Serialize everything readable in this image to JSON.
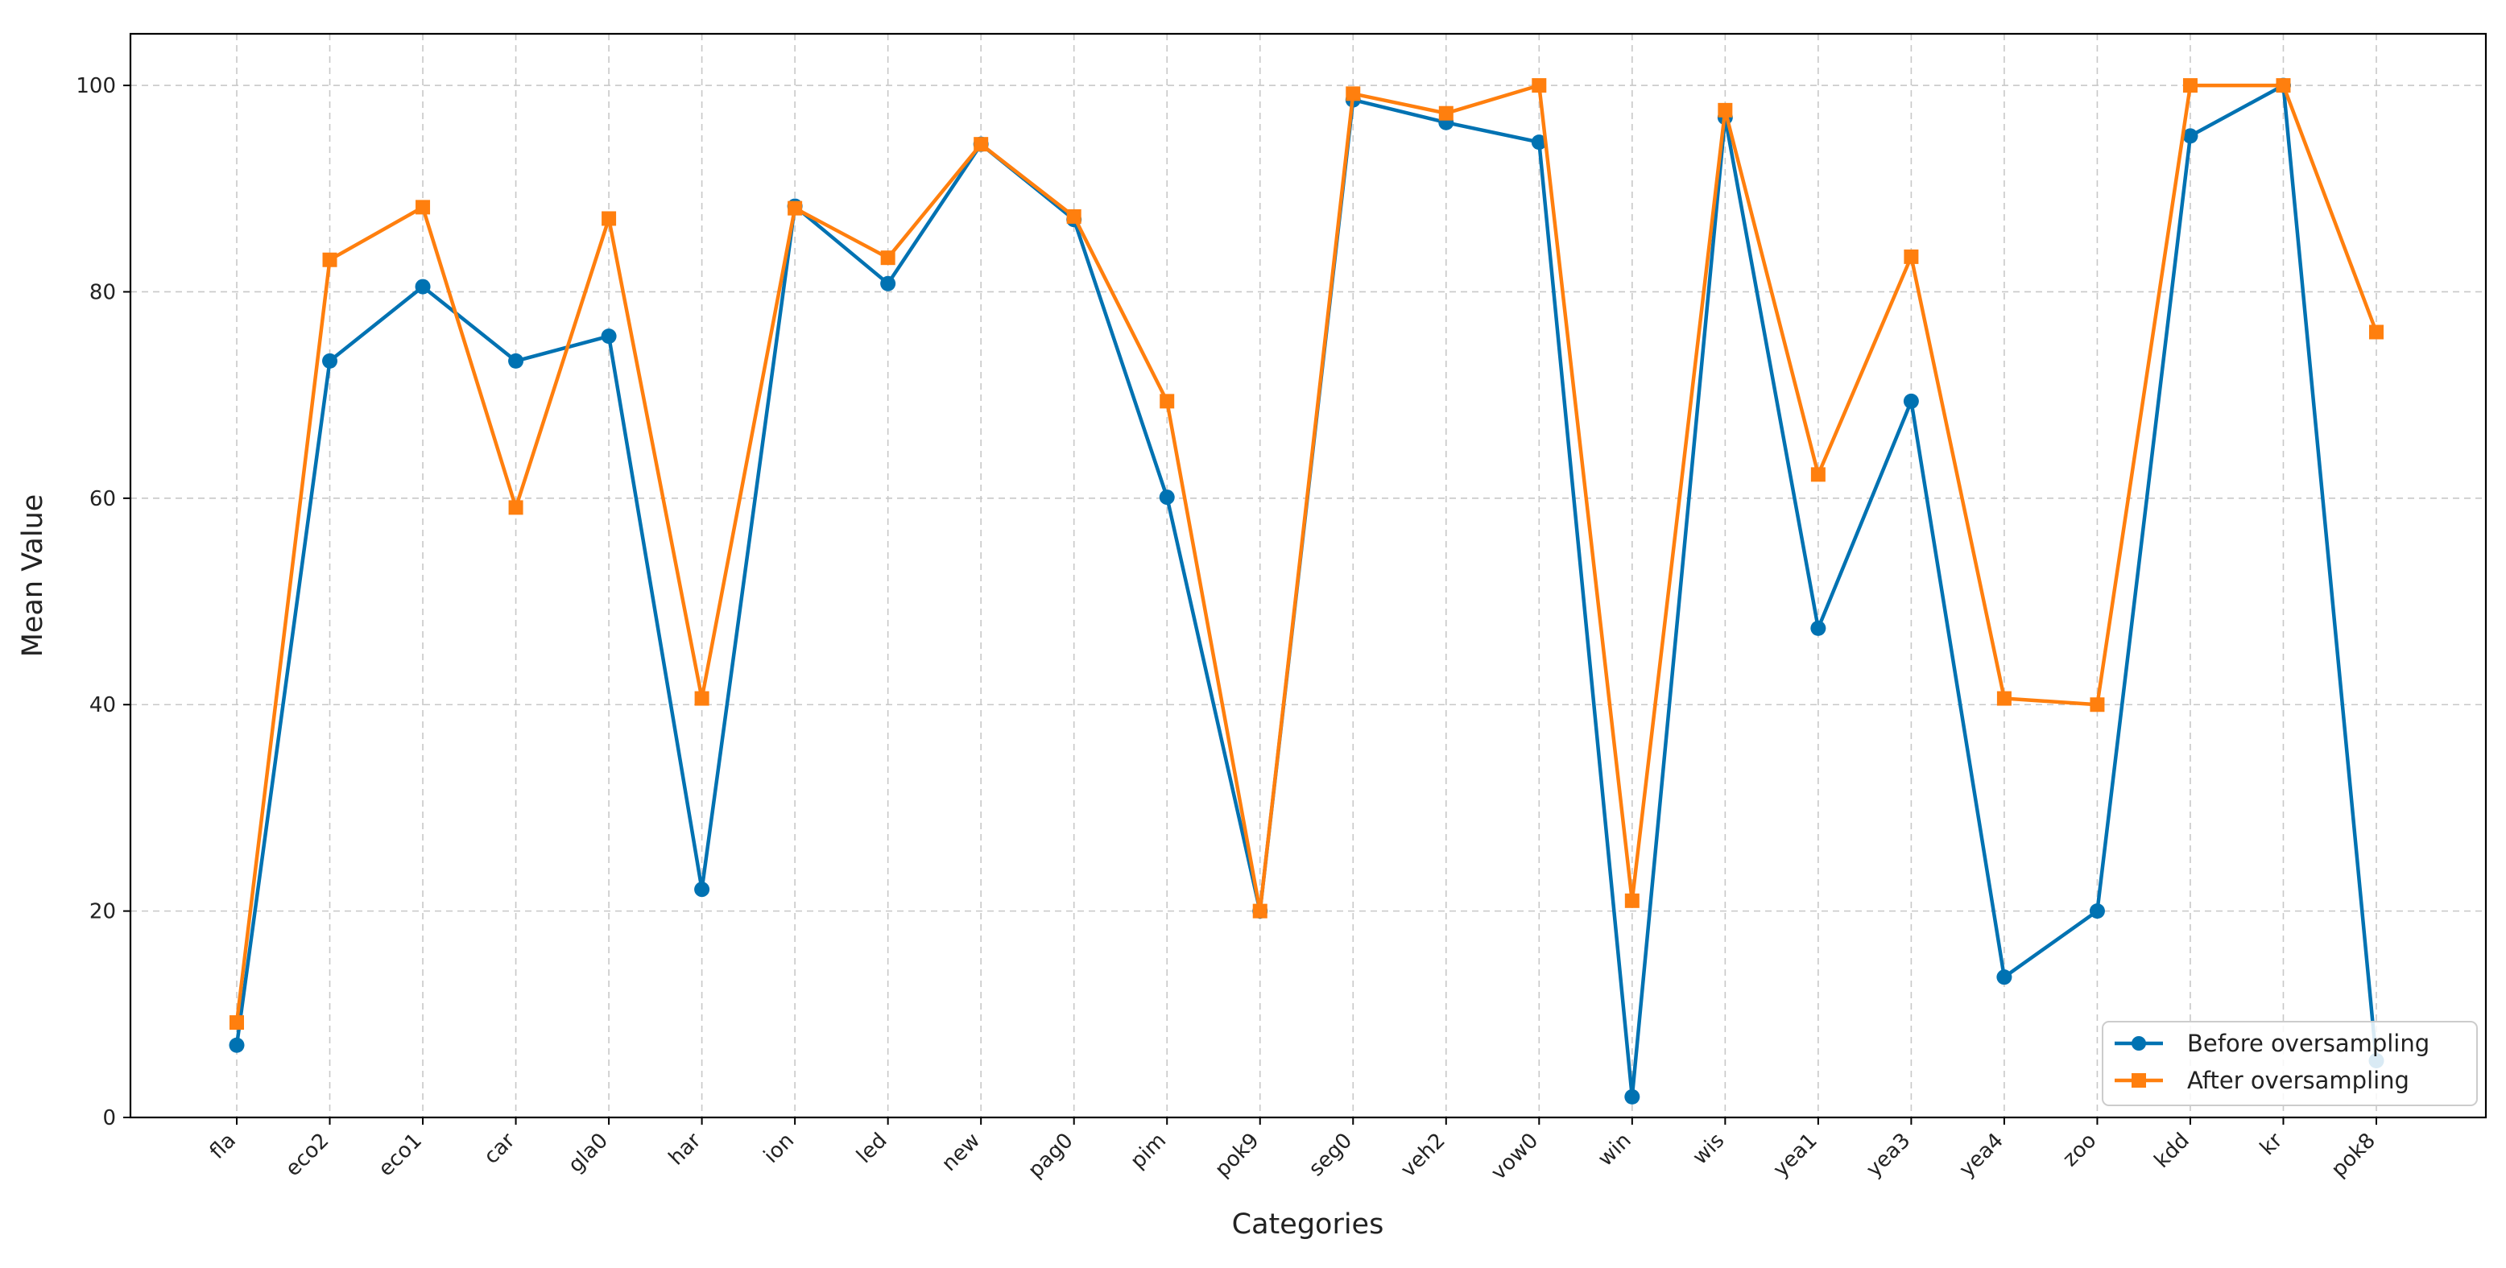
{
  "chart_data": {
    "type": "line",
    "title": "",
    "xlabel": "Categories",
    "ylabel": "Mean Value",
    "ylim": [
      0,
      105
    ],
    "yticks": [
      0,
      20,
      40,
      60,
      80,
      100
    ],
    "grid": true,
    "legend_position": "bottom-right",
    "categories": [
      "fla",
      "eco2",
      "eco1",
      "car",
      "gla0",
      "har",
      "ion",
      "led",
      "new",
      "pag0",
      "pim",
      "pok9",
      "seg0",
      "veh2",
      "vow0",
      "win",
      "wis",
      "yea1",
      "yea3",
      "yea4",
      "zoo",
      "kdd",
      "kr",
      "pok8"
    ],
    "series": [
      {
        "name": "Before oversampling",
        "color": "#0072b2",
        "marker": "circle",
        "values": [
          7.0,
          73.3,
          80.5,
          73.3,
          75.7,
          22.1,
          88.3,
          80.8,
          94.3,
          87.0,
          60.1,
          20.0,
          98.6,
          96.4,
          94.5,
          2.0,
          96.9,
          47.4,
          69.4,
          13.6,
          20.0,
          95.1,
          100.0,
          5.5
        ]
      },
      {
        "name": "After oversampling",
        "color": "#ff7f0e",
        "marker": "square",
        "values": [
          9.2,
          83.1,
          88.2,
          59.1,
          87.1,
          40.6,
          88.1,
          83.3,
          94.3,
          87.3,
          69.4,
          20.0,
          99.2,
          97.3,
          100.0,
          21.0,
          97.6,
          62.3,
          83.4,
          40.6,
          40.0,
          100.0,
          100.0,
          76.1
        ]
      }
    ]
  }
}
